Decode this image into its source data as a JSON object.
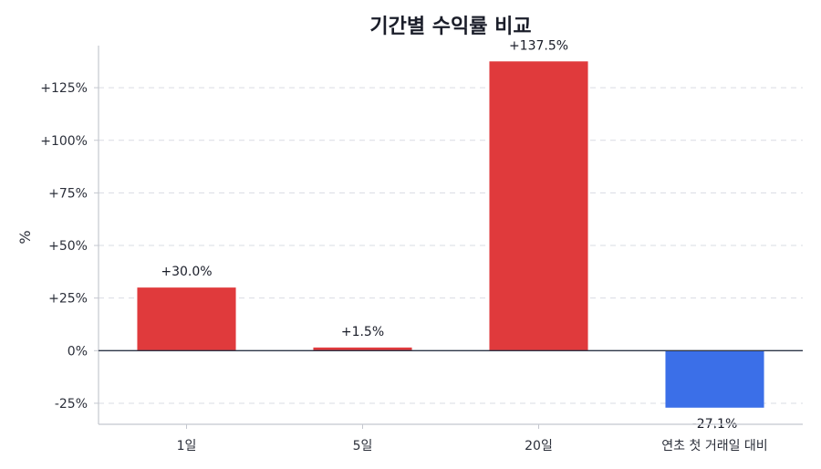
{
  "chart_data": {
    "type": "bar",
    "title": "기간별 수익률 비교",
    "xlabel": "",
    "ylabel": "%",
    "categories": [
      "1일",
      "5일",
      "20일",
      "연초 첫 거래일 대비"
    ],
    "values": [
      30.0,
      1.5,
      137.5,
      -27.1
    ],
    "value_labels": [
      "+30.0%",
      "+1.5%",
      "+137.5%",
      "-27.1%"
    ],
    "ylim": [
      -35,
      145
    ],
    "yticks": [
      -25,
      0,
      25,
      50,
      75,
      100,
      125
    ],
    "ytick_labels": [
      "-25%",
      "0%",
      "+25%",
      "+50%",
      "+75%",
      "+100%",
      "+125%"
    ],
    "grid": true,
    "colors": {
      "positive": "#e03a3c",
      "negative": "#3b6fe8",
      "zero_line": "#2d3648"
    }
  }
}
